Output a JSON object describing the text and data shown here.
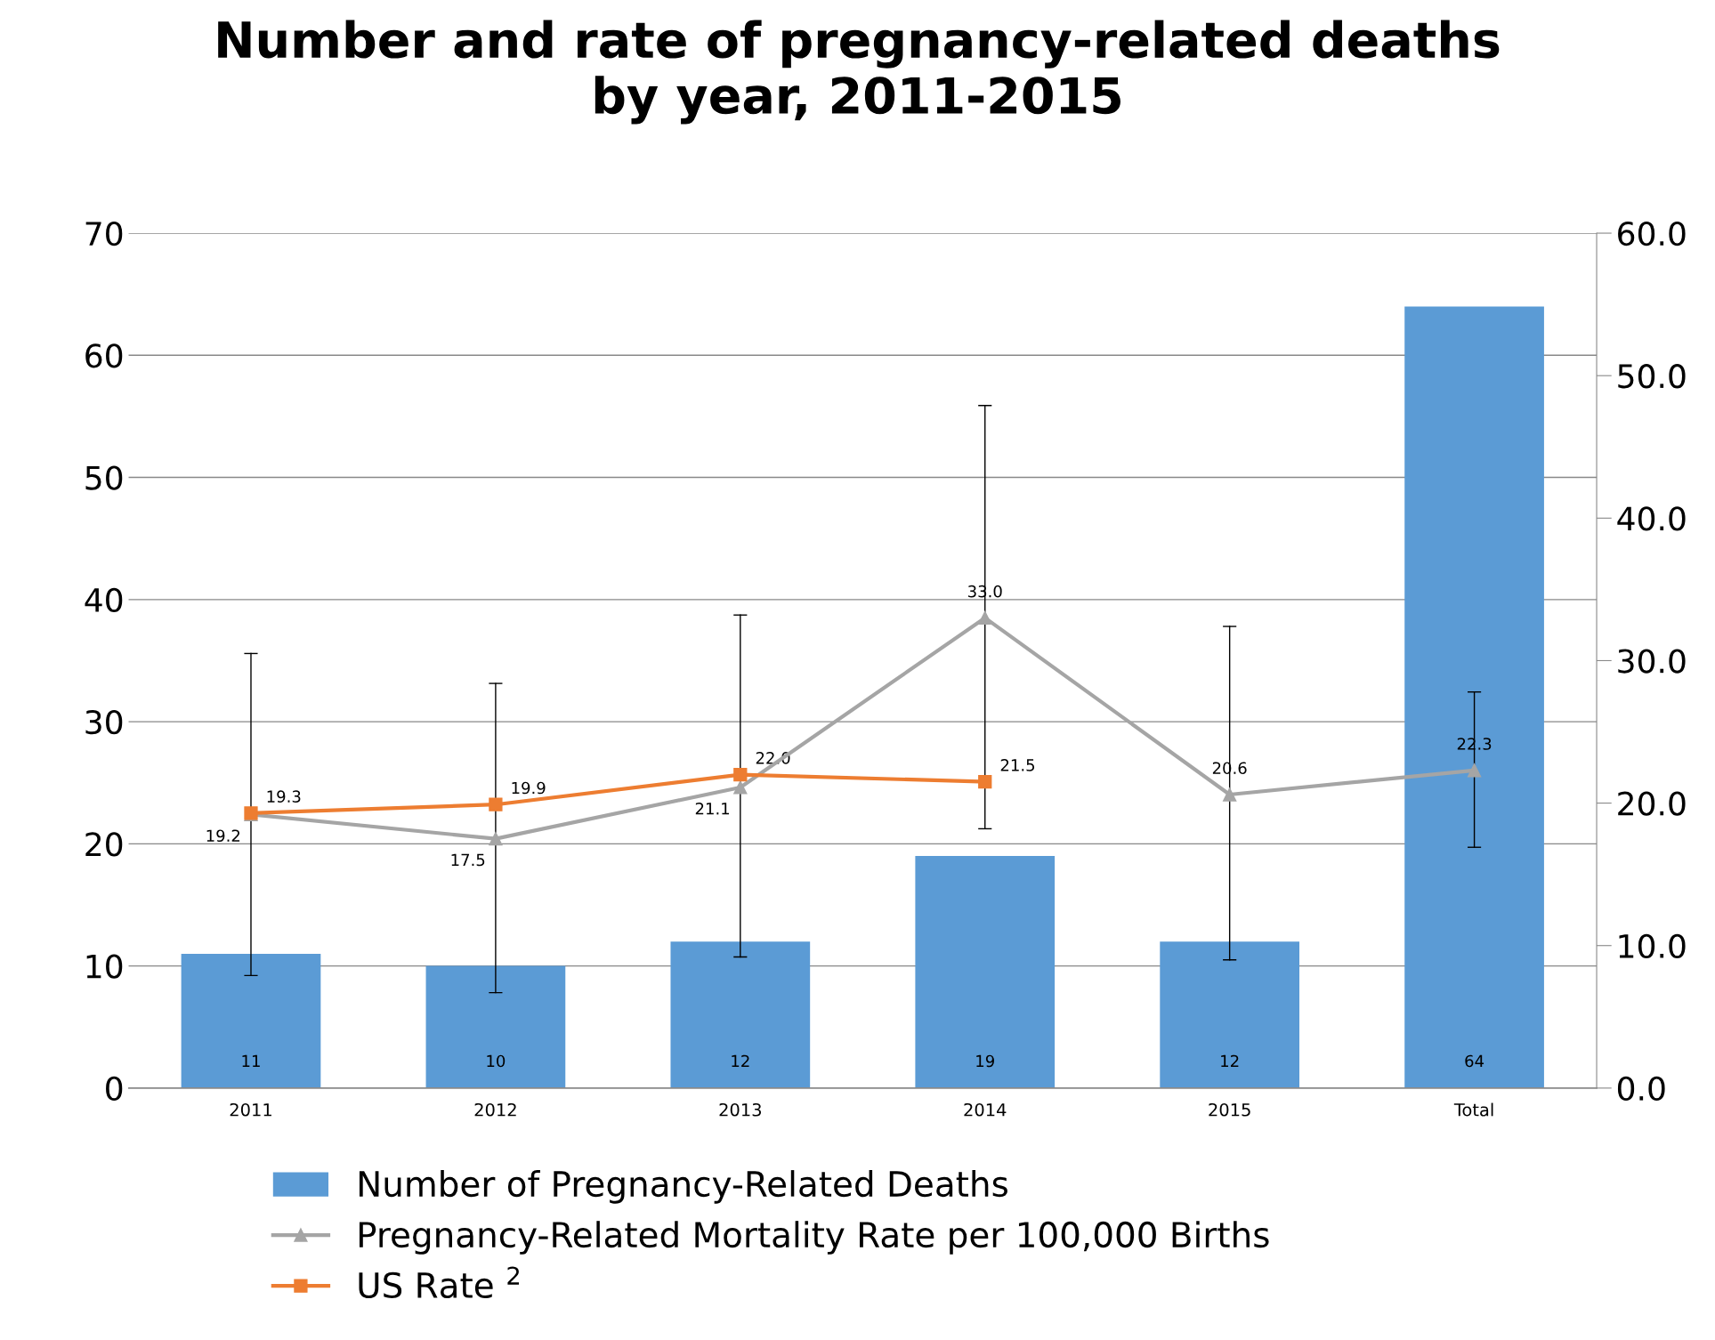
{
  "chart_data": {
    "type": "bar",
    "title": "Number and rate of pregnancy-related deaths\nby year, 2011-2015",
    "categories": [
      "2011",
      "2012",
      "2013",
      "2014",
      "2015",
      "Total"
    ],
    "series": [
      {
        "name": "Number of Pregnancy-Related Deaths",
        "color": "#5b9bd5",
        "values": [
          11,
          10,
          12,
          19,
          12,
          64
        ],
        "value_labels": [
          "11",
          "10",
          "12",
          "19",
          "12",
          "64"
        ]
      },
      {
        "name": "Pregnancy-Related Mortality Rate per 100,000 Births",
        "type": "line",
        "axis": "y2",
        "marker": "triangle",
        "color": "#a5a5a5",
        "values": [
          19.2,
          17.5,
          21.1,
          33.0,
          20.6,
          22.3
        ],
        "value_labels": [
          "19.2",
          "17.5",
          "21.1",
          "33.0",
          "20.6",
          "22.3"
        ],
        "errors": [
          [
            7.9,
            30.5
          ],
          [
            6.7,
            28.4
          ],
          [
            9.2,
            33.2
          ],
          [
            18.2,
            47.9
          ],
          [
            9.0,
            32.4
          ],
          [
            16.9,
            27.8
          ]
        ]
      },
      {
        "name": "US Rate $^{2}$",
        "type": "line",
        "axis": "y2",
        "marker": "square",
        "color": "#ed7d31",
        "values": [
          19.3,
          19.9,
          22.0,
          21.5,
          null,
          null
        ],
        "value_labels": [
          "19.3",
          "19.9",
          "22.0",
          "21.5",
          null,
          null
        ]
      }
    ],
    "ylim": [
      0,
      70
    ],
    "yticks": [
      0,
      10,
      20,
      30,
      40,
      50,
      60,
      70
    ],
    "y2lim": [
      0,
      60
    ],
    "y2ticks": [
      {
        "value": 0,
        "label": "0.0"
      },
      {
        "value": 10,
        "label": "10.0"
      },
      {
        "value": 20,
        "label": "20.0"
      },
      {
        "value": 30,
        "label": "30.0"
      },
      {
        "value": 40,
        "label": "40.0"
      },
      {
        "value": 50,
        "label": "50.0"
      },
      {
        "value": 60,
        "label": "60.0"
      }
    ],
    "grid": "y",
    "legend": "bottom",
    "data_labels": true
  }
}
